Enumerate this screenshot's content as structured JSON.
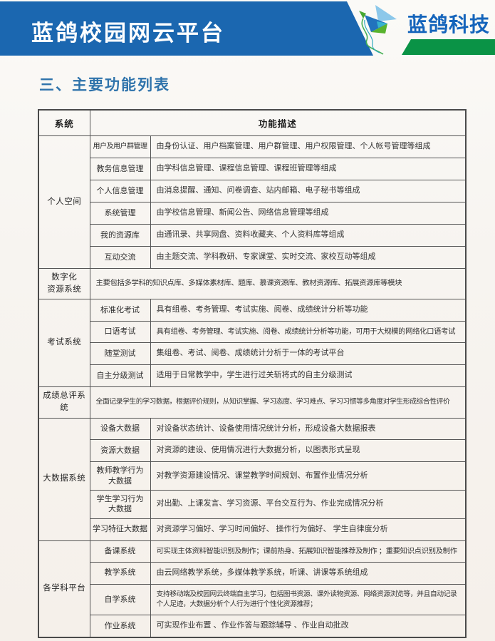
{
  "colors": {
    "band-blue": "#1b67b0",
    "brand-blue": "#1464bb",
    "brand-green": "#0a9346",
    "heading-blue": "#2f73ab",
    "border-gray": "#555555"
  },
  "header": {
    "title": "蓝鸽校园网云平台",
    "brand": "蓝鸽科技",
    "logo_icon": "origami-bird-logo"
  },
  "section_heading": "三、主要功能列表",
  "table": {
    "headers": {
      "col1": "系统",
      "col2": "功能描述"
    },
    "groups": [
      {
        "name": "个人空间",
        "rows": [
          {
            "label": "用户及用户群管理",
            "desc": "由身份认证、用户档案管理、用户群管理、用户权限管理、个人帐号管理等组成"
          },
          {
            "label": "教务信息管理",
            "desc": "由学科信息管理、课程信息管理、课程班管理等组成"
          },
          {
            "label": "个人信息管理",
            "desc": "由消息提醒、通知、问卷调查、站内邮箱、电子秘书等组成"
          },
          {
            "label": "系统管理",
            "desc": "由学校信息管理、新闻公告、网络信息管理等组成"
          },
          {
            "label": "我的资源库",
            "desc": "由通讯录、共享网盘、资料收藏夹、个人资料库等组成"
          },
          {
            "label": "互动交流",
            "desc": "由主题交流、学科教研、专家课堂、实时交流、家校互动等组成"
          }
        ]
      },
      {
        "name": "数字化\n资源系统",
        "full_desc": "主要包括多学科的知识点库、多媒体素材库、题库、慕课资源库、教材资源库、拓展资源库等模块"
      },
      {
        "name": "考试系统",
        "rows": [
          {
            "label": "标准化考试",
            "desc": "具有组卷、考务管理、考试实施、阅卷、成绩统计分析等功能"
          },
          {
            "label": "口语考试",
            "desc": "具有组卷、考务管理、考试实施、阅卷、成绩统计分析等功能，可用于大规模的网络化口语考试"
          },
          {
            "label": "随堂测试",
            "desc": "集组卷、考试、阅卷、成绩统计分析于一体的考试平台"
          },
          {
            "label": "自主分级测试",
            "desc": "适用于日常教学中，学生进行过关斩将式的自主分级测试"
          }
        ]
      },
      {
        "name": "成绩总评系统",
        "full_desc": "全面记录学生的学习数据，根据评价规则，从知识掌握、学习态度、学习难点、学习习惯等多角度对学生形成综合性评价"
      },
      {
        "name": "大数据系统",
        "rows": [
          {
            "label": "设备大数据",
            "desc": "对设备状态统计、设备使用情况统计分析，形成设备大数据报表"
          },
          {
            "label": "资源大数据",
            "desc": "对资源的建设、使用情况进行大数据分析，以图表形式呈现"
          },
          {
            "label": "教师教学行为\n大数据",
            "desc": "对教学资源建设情况、课堂教学时间规划、布置作业情况分析"
          },
          {
            "label": "学生学习行为\n大数据",
            "desc": "对出勤、上课发言、学习资源、平台交互行为、作业完成情况分析"
          },
          {
            "label": "学习特征大数据",
            "desc": "对资源学习偏好、学习时间偏好、 操作行为偏好、 学生自律度分析"
          }
        ]
      },
      {
        "name": "各学科平台",
        "rows": [
          {
            "label": "备课系统",
            "desc": "可实现主体资料智能识别及制作；课前热身、拓展知识智能推荐及制作 ；重要知识点识别及制作"
          },
          {
            "label": "教学系统",
            "desc": "由云网络教学系统，多媒体教学系统，听课、讲课等系统组成"
          },
          {
            "label": "自学系统",
            "desc": "支持移动端及校园网云终端自主学习，包括图书资源、课外读物资源、网络资源浏览等，并且自动记录个人足迹，大数据分析个人行为进行个性化资源推荐；"
          },
          {
            "label": "作业系统",
            "desc": "可实现作业布置 、作业作答与跟踪辅导 、作业自动批改"
          }
        ]
      }
    ]
  }
}
